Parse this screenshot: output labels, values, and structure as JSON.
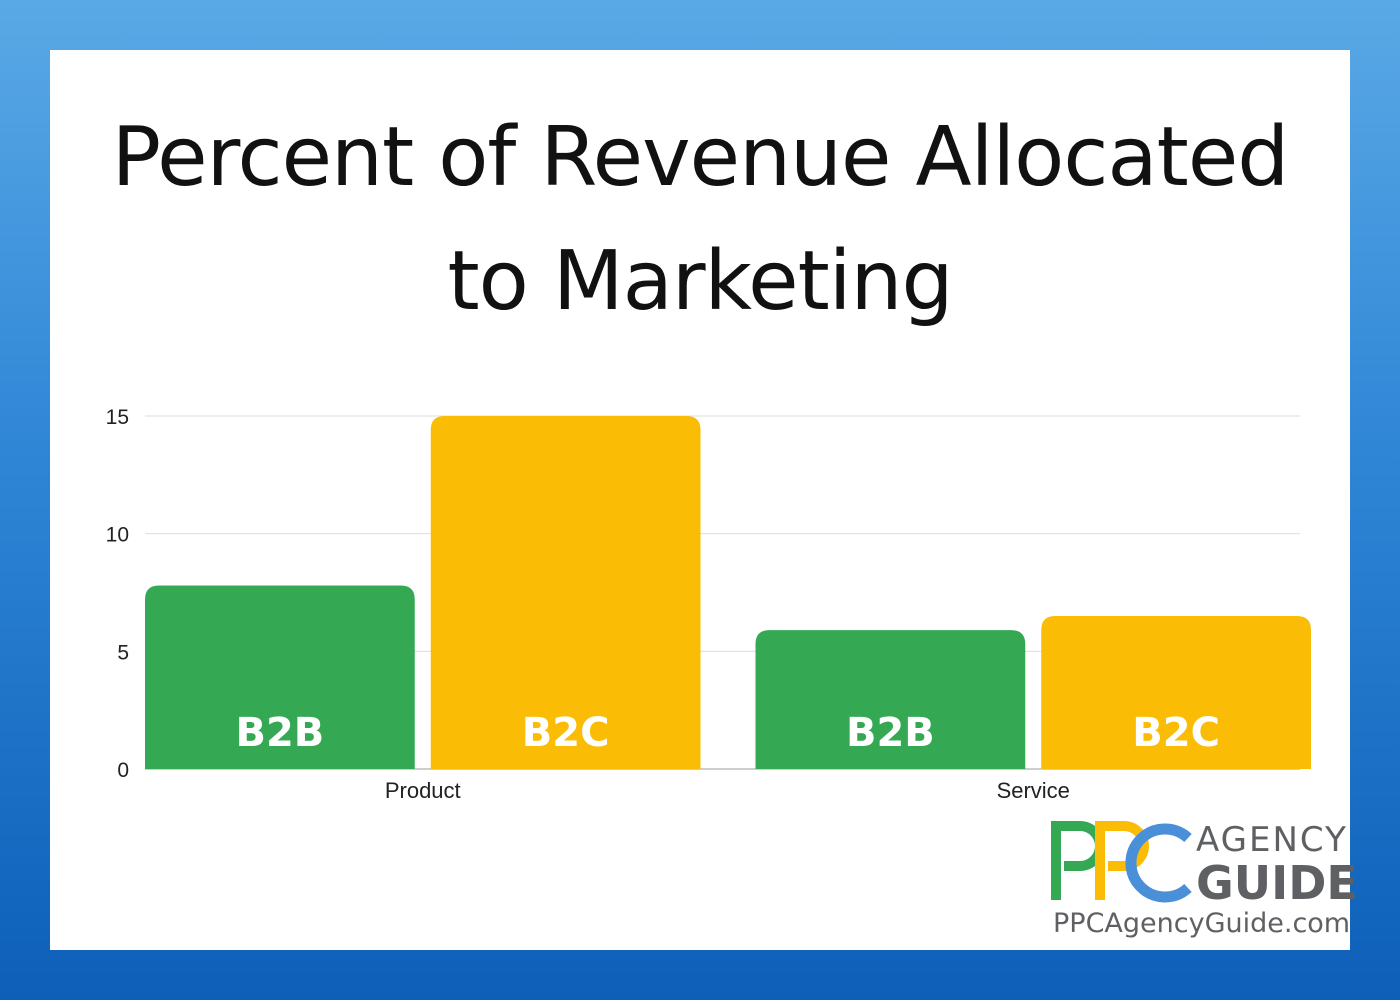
{
  "chart_data": {
    "type": "bar",
    "title_lines": [
      "Percent of Revenue Allocated",
      "to Marketing"
    ],
    "categories": [
      "Product",
      "Service"
    ],
    "series": [
      {
        "name": "B2B",
        "values": [
          7.8,
          5.9
        ],
        "color": "#34a853"
      },
      {
        "name": "B2C",
        "values": [
          15,
          6.5
        ],
        "color": "#fbbc05"
      }
    ],
    "yticks": [
      0,
      5,
      10,
      15
    ],
    "ylim": [
      0,
      15
    ],
    "grid": true,
    "xlabel": "",
    "ylabel": ""
  },
  "logo": {
    "letters": "PPC",
    "line1": "AGENCY",
    "line2": "GUIDE",
    "url": "PPCAgencyGuide.com",
    "colors": {
      "green": "#34a853",
      "yellow": "#fbbc05",
      "blue": "#4a90d9"
    }
  }
}
